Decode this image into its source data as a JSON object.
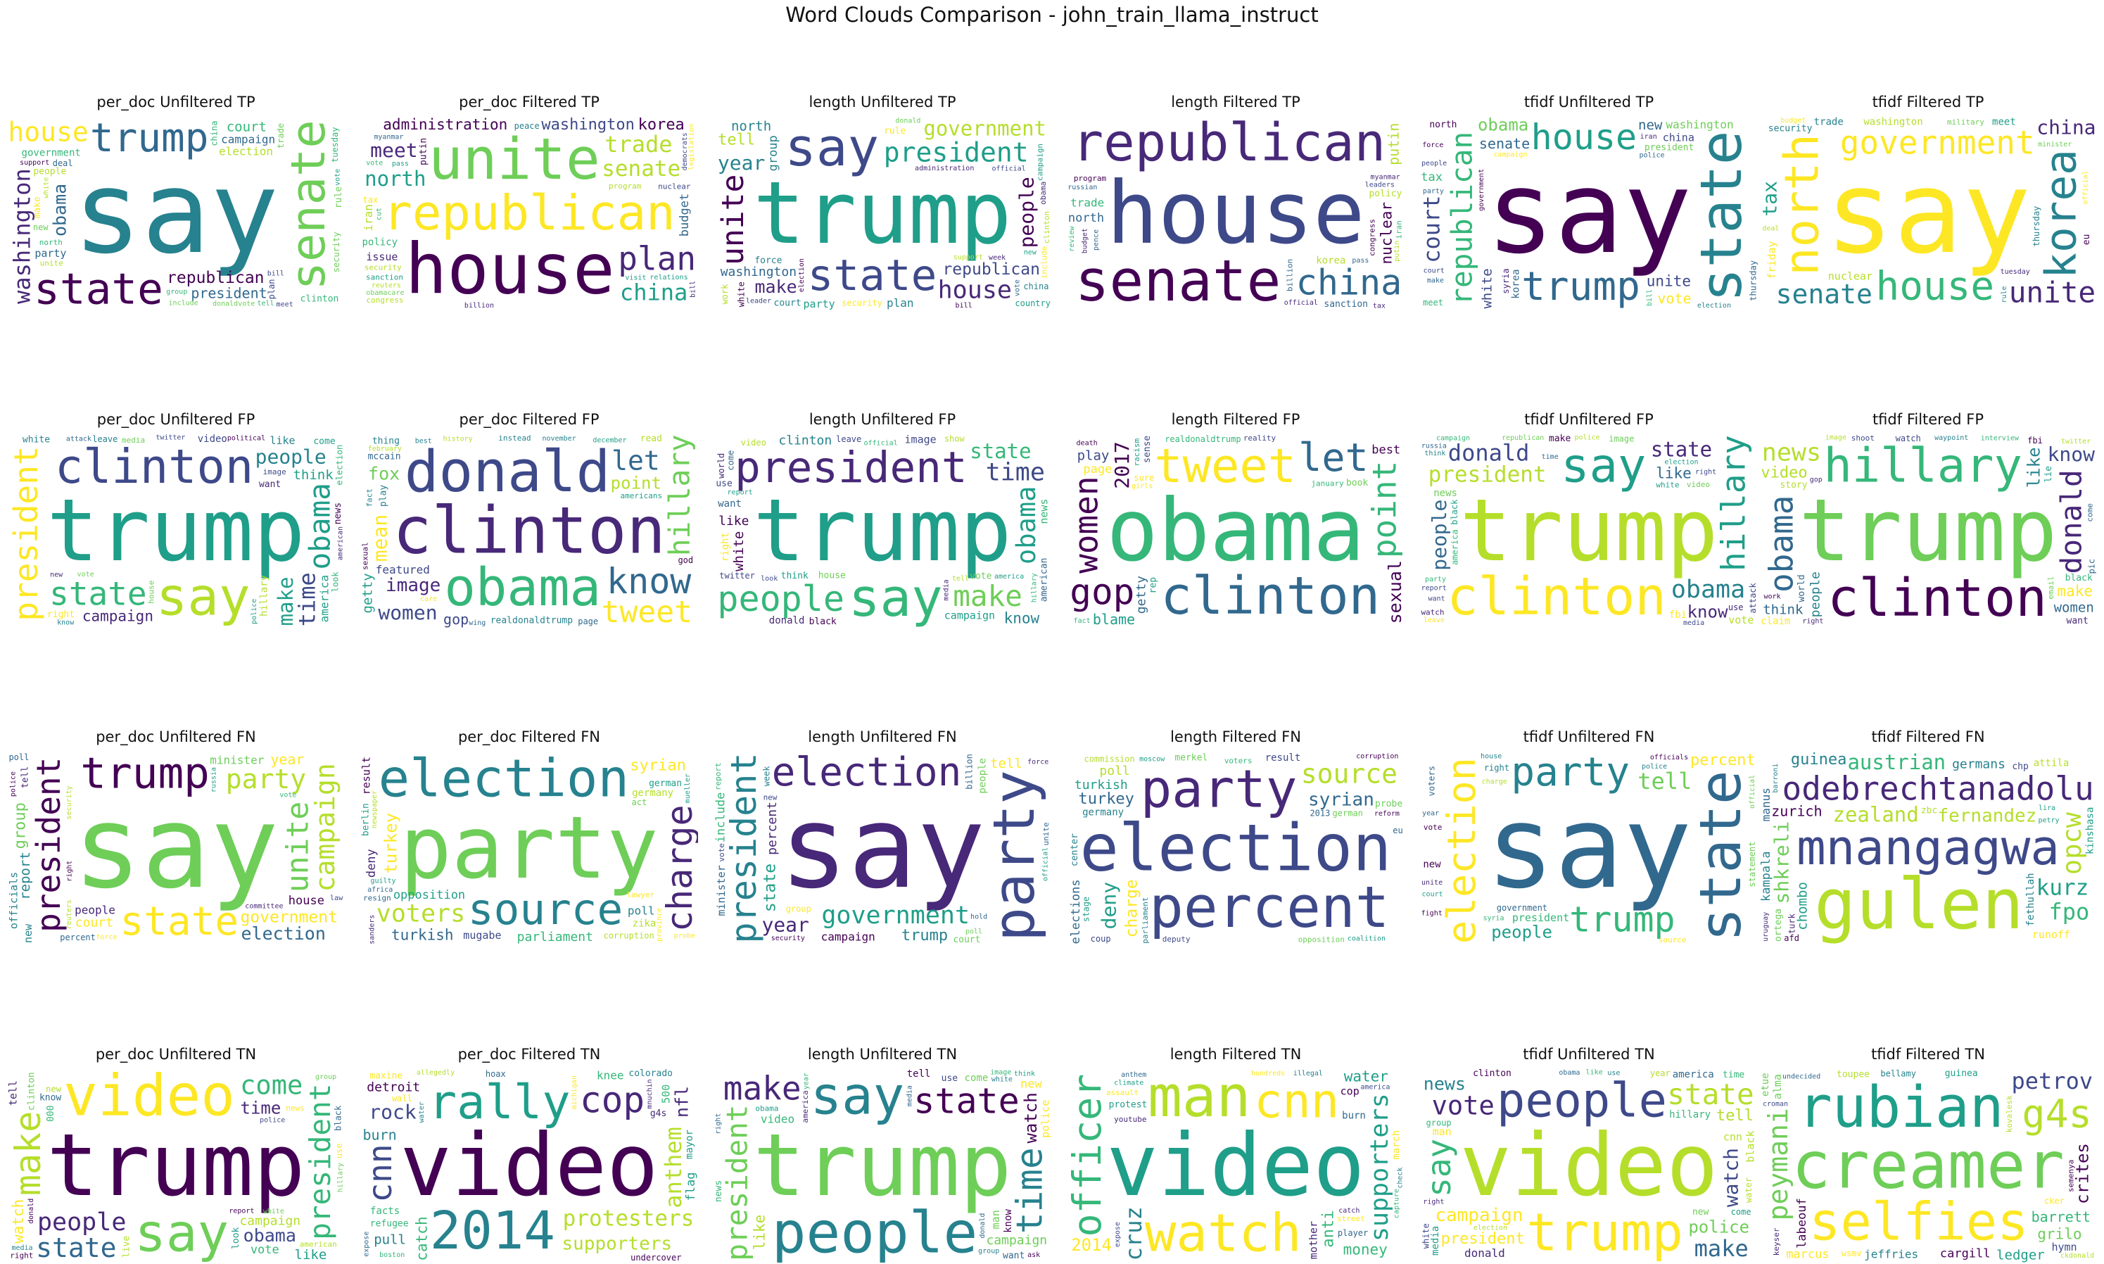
{
  "title": "Word Clouds Comparison - john_train_llama_instruct",
  "palette": [
    "#440154",
    "#482878",
    "#3e4989",
    "#31688e",
    "#26828e",
    "#1f9e89",
    "#35b779",
    "#6ece58",
    "#b5de2b",
    "#fde725"
  ],
  "chart_data": [
    {
      "type": "wordcloud",
      "title": "per_doc Unfiltered TP",
      "words": [
        "say",
        "trump",
        "state",
        "senate",
        "republican",
        "president",
        "house",
        "washington",
        "campaign",
        "government",
        "election",
        "obama",
        "clinton",
        "party",
        "court",
        "people",
        "donaldvote",
        "include",
        "north",
        "group",
        "unite",
        "support",
        "make",
        "tell",
        "force",
        "rule",
        "report",
        "new",
        "national",
        "administration",
        "meet",
        "plan",
        "military",
        "security",
        "official",
        "tuesday",
        "white",
        "russia",
        "china",
        "vote",
        "sanction",
        "trade",
        "law",
        "right",
        "leader",
        "bill",
        "republicans",
        "official",
        "deal",
        "tax",
        "nuclear",
        "policy",
        "week",
        "million"
      ]
    },
    {
      "type": "wordcloud",
      "title": "per_doc Filtered TP",
      "words": [
        "republican",
        "house",
        "unite",
        "washington",
        "senate",
        "plan",
        "north",
        "china",
        "meet",
        "trade",
        "administration",
        "congress",
        "korea",
        "nuclear",
        "policy",
        "budget",
        "iran",
        "issue",
        "program",
        "sanction",
        "security",
        "pass",
        "legislation",
        "billion",
        "putin",
        "obamacare",
        "visit",
        "peace",
        "leaders",
        "tax",
        "democrats",
        "relations",
        "reuters",
        "myanmar",
        "veteran",
        "healthcare",
        "official",
        "lawmaker",
        "cut",
        "vote",
        "office",
        "bill",
        "minister",
        "representative",
        "treasury"
      ]
    },
    {
      "type": "wordcloud",
      "title": "length Unfiltered TP",
      "words": [
        "trump",
        "say",
        "state",
        "president",
        "republican",
        "house",
        "government",
        "unite",
        "people",
        "washington",
        "year",
        "make",
        "tell",
        "include",
        "north",
        "group",
        "plan",
        "party",
        "obama",
        "clinton",
        "campaign",
        "force",
        "rule",
        "administration",
        "election",
        "court",
        "white",
        "china",
        "country",
        "work",
        "issue",
        "support",
        "percent",
        "security",
        "new",
        "donald",
        "republicans",
        "percent",
        "million",
        "official",
        "leader",
        "bill",
        "vote",
        "policy",
        "week"
      ]
    },
    {
      "type": "wordcloud",
      "title": "length Filtered TP",
      "words": [
        "house",
        "republican",
        "senate",
        "china",
        "north",
        "administration",
        "policy",
        "korea",
        "trade",
        "program",
        "nuclear",
        "congress",
        "sanction",
        "putin",
        "billion",
        "budget",
        "leaders",
        "iran",
        "obamacare",
        "healthcare",
        "myanmar",
        "review",
        "chinese",
        "leadership",
        "official",
        "bangladesh",
        "pence",
        "putin",
        "security",
        "lawmaker",
        "obamacare",
        "russian",
        "tax",
        "reform",
        "minister",
        "representative",
        "pass",
        "vote"
      ]
    },
    {
      "type": "wordcloud",
      "title": "tfidf Unfiltered TP",
      "words": [
        "say",
        "trump",
        "state",
        "house",
        "republican",
        "senate",
        "president",
        "court",
        "washington",
        "obama",
        "unite",
        "white",
        "tax",
        "vote",
        "new",
        "north",
        "government",
        "party",
        "china",
        "korea",
        "clinton",
        "make",
        "campaign",
        "election",
        "security",
        "russian",
        "military",
        "include",
        "thursday",
        "syria",
        "statement",
        "meet",
        "republicans",
        "iran",
        "people",
        "percent",
        "court",
        "official",
        "police",
        "force",
        "leader",
        "bill"
      ]
    },
    {
      "type": "wordcloud",
      "title": "tfidf Filtered TP",
      "words": [
        "say",
        "house",
        "government",
        "north",
        "unite",
        "korea",
        "senate",
        "washington",
        "china",
        "trade",
        "tax",
        "military",
        "security",
        "nuclear",
        "minister",
        "tuesday",
        "thursday",
        "friday",
        "deal",
        "budget",
        "meet",
        "eu",
        "official",
        "statement",
        "sanction",
        "islamic",
        "britain",
        "european",
        "committee",
        "reuters",
        "monday",
        "foreign",
        "rule",
        "leaders",
        "democrats",
        "president",
        "congress",
        "parliament",
        "prime"
      ]
    },
    {
      "type": "wordcloud",
      "title": "per_doc Unfiltered FP",
      "words": [
        "trump",
        "say",
        "president",
        "clinton",
        "obama",
        "state",
        "make",
        "time",
        "people",
        "hillary",
        "campaign",
        "think",
        "want",
        "like",
        "video",
        "white",
        "america",
        "house",
        "media",
        "twitter",
        "image",
        "right",
        "news",
        "come",
        "vote",
        "police",
        "election",
        "leave",
        "republican",
        "attack",
        "political",
        "party",
        "report",
        "know",
        "look",
        "world",
        "american",
        "tell",
        "donald",
        "new"
      ]
    },
    {
      "type": "wordcloud",
      "title": "per_doc Filtered FP",
      "words": [
        "clinton",
        "obama",
        "donald",
        "know",
        "hillary",
        "image",
        "let",
        "tweet",
        "women",
        "point",
        "mean",
        "fox",
        "realdonaldtrump",
        "gop",
        "getty",
        "play",
        "featured",
        "americans",
        "fact",
        "instead",
        "sexual",
        "mccain",
        "read",
        "thing",
        "november",
        "december",
        "history",
        "care",
        "wing",
        "page",
        "god",
        "best",
        "destroy",
        "racism",
        "reality",
        "february",
        "picture",
        "different"
      ]
    },
    {
      "type": "wordcloud",
      "title": "length Unfiltered FP",
      "words": [
        "trump",
        "say",
        "president",
        "people",
        "make",
        "time",
        "state",
        "clinton",
        "obama",
        "like",
        "know",
        "donald",
        "think",
        "campaign",
        "white",
        "house",
        "twitter",
        "image",
        "news",
        "want",
        "right",
        "american",
        "vote",
        "use",
        "media",
        "black",
        "hillary",
        "show",
        "video",
        "world",
        "leave",
        "america",
        "official",
        "tell",
        "report",
        "come",
        "look"
      ]
    },
    {
      "type": "wordcloud",
      "title": "length Filtered FP",
      "words": [
        "obama",
        "clinton",
        "women",
        "tweet",
        "let",
        "point",
        "gop",
        "getty",
        "2017",
        "january",
        "realdonaldtrump",
        "sexual",
        "page",
        "blame",
        "play",
        "best",
        "sure",
        "death",
        "racism",
        "reality",
        "finally",
        "simply",
        "november",
        "rep",
        "book",
        "sense",
        "girls",
        "article",
        "picture",
        "screen",
        "actually",
        "fact"
      ]
    },
    {
      "type": "wordcloud",
      "title": "tfidf Unfiltered FP",
      "words": [
        "trump",
        "clinton",
        "hillary",
        "say",
        "president",
        "obama",
        "state",
        "donald",
        "like",
        "know",
        "people",
        "video",
        "make",
        "vote",
        "news",
        "time",
        "image",
        "white",
        "republican",
        "fbi",
        "watch",
        "police",
        "party",
        "election",
        "think",
        "russia",
        "america",
        "black",
        "report",
        "leave",
        "attack",
        "house",
        "campaign",
        "media",
        "use",
        "right",
        "want",
        "come",
        "twitter",
        "email"
      ]
    },
    {
      "type": "wordcloud",
      "title": "tfidf Filtered FP",
      "words": [
        "trump",
        "clinton",
        "obama",
        "hillary",
        "donald",
        "news",
        "video",
        "like",
        "know",
        "people",
        "make",
        "women",
        "black",
        "email",
        "think",
        "want",
        "watch",
        "come",
        "shoot",
        "claim",
        "interview",
        "lie",
        "story",
        "waypoint",
        "twitter",
        "world",
        "work",
        "right",
        "pic",
        "image",
        "media",
        "fbi",
        "gop",
        "police"
      ]
    },
    {
      "type": "wordcloud",
      "title": "per_doc Unfiltered FN",
      "words": [
        "say",
        "state",
        "trump",
        "party",
        "government",
        "president",
        "campaign",
        "unite",
        "people",
        "court",
        "minister",
        "election",
        "group",
        "year",
        "report",
        "house",
        "percent",
        "officials",
        "new",
        "vote",
        "include",
        "tell",
        "security",
        "reuters",
        "russia",
        "police",
        "right",
        "political",
        "republican",
        "national",
        "poll",
        "support",
        "committee",
        "leader",
        "country",
        "force",
        "law",
        "week"
      ]
    },
    {
      "type": "wordcloud",
      "title": "per_doc Filtered FN",
      "words": [
        "party",
        "election",
        "source",
        "charge",
        "opposition",
        "voters",
        "syrian",
        "turkey",
        "turkish",
        "parliament",
        "corruption",
        "germany",
        "german",
        "mugabe",
        "authorities",
        "deny",
        "poll",
        "result",
        "lawyer",
        "zika",
        "resign",
        "probe",
        "merkel",
        "berlin",
        "africa",
        "allegations",
        "prosecutors",
        "investigate",
        "indictment",
        "sanders",
        "investigations",
        "mueller",
        "guilty",
        "supply",
        "act",
        "newspaper",
        "coalition",
        "collusion",
        "province"
      ]
    },
    {
      "type": "wordcloud",
      "title": "length Unfiltered FN",
      "words": [
        "say",
        "election",
        "party",
        "president",
        "state",
        "government",
        "trump",
        "percent",
        "year",
        "people",
        "campaign",
        "tell",
        "include",
        "minister",
        "vote",
        "court",
        "group",
        "report",
        "security",
        "unite",
        "new",
        "official",
        "officials",
        "hold",
        "police",
        "force",
        "national",
        "country",
        "billion",
        "reuters",
        "military",
        "week",
        "poll",
        "leader"
      ]
    },
    {
      "type": "wordcloud",
      "title": "length Filtered FN",
      "words": [
        "election",
        "party",
        "percent",
        "source",
        "charge",
        "syrian",
        "turkey",
        "turkish",
        "deny",
        "poll",
        "german",
        "germany",
        "merkel",
        "voters",
        "result",
        "elections",
        "commission",
        "opposition",
        "parliament",
        "corruption",
        "deputy",
        "coalition",
        "probe",
        "moscow",
        "center",
        "investigate",
        "coup",
        "2013",
        "eu",
        "stage",
        "supporters",
        "reform"
      ]
    },
    {
      "type": "wordcloud",
      "title": "tfidf Unfiltered FN",
      "words": [
        "say",
        "party",
        "state",
        "trump",
        "election",
        "president",
        "percent",
        "people",
        "government",
        "tell",
        "police",
        "officials",
        "minister",
        "campaign",
        "vote",
        "year",
        "right",
        "source",
        "republican",
        "court",
        "new",
        "house",
        "charge",
        "russia",
        "syria",
        "attack",
        "statement",
        "security",
        "fight",
        "report",
        "include",
        "group",
        "unite",
        "official",
        "voters"
      ]
    },
    {
      "type": "wordcloud",
      "title": "tfidf Filtered FN",
      "words": [
        "mnangagwa",
        "gulen",
        "odebrechtanadolu",
        "zealand",
        "kurz",
        "fernandez",
        "austrian",
        "germans",
        "opcw",
        "fpo",
        "shkreli",
        "fethullah",
        "guinea",
        "zurich",
        "chombo",
        "kampala",
        "manus",
        "runoff",
        "uruguay",
        "attila",
        "kinshasa",
        "zbc",
        "chp",
        "maldonado",
        "petry",
        "ortega",
        "turk",
        "barroni",
        "afd",
        "lira"
      ]
    },
    {
      "type": "wordcloud",
      "title": "per_doc Unfiltered TN",
      "words": [
        "trump",
        "say",
        "video",
        "make",
        "president",
        "people",
        "state",
        "campaign",
        "come",
        "time",
        "watch",
        "obama",
        "clinton",
        "tell",
        "like",
        "vote",
        "white",
        "right",
        "news",
        "america",
        "american",
        "000",
        "live",
        "know",
        "look",
        "group",
        "report",
        "media",
        "hillary",
        "new",
        "police",
        "officer",
        "black",
        "use",
        "police",
        "donald"
      ]
    },
    {
      "type": "wordcloud",
      "title": "per_doc Filtered TN",
      "words": [
        "video",
        "2014",
        "cnn",
        "rally",
        "protesters",
        "supporters",
        "cop",
        "anthem",
        "rock",
        "detroit",
        "catch",
        "nfl",
        "refugee",
        "burn",
        "pull",
        "flag",
        "knee",
        "500",
        "michigan",
        "mayor",
        "facts",
        "g4s",
        "colorado",
        "maxine",
        "mnuchin",
        "expose",
        "undercover",
        "water",
        "hoax",
        "wall",
        "jackson",
        "allegedly",
        "boston"
      ]
    },
    {
      "type": "wordcloud",
      "title": "length Unfiltered TN",
      "words": [
        "trump",
        "say",
        "people",
        "state",
        "president",
        "make",
        "time",
        "campaign",
        "video",
        "watch",
        "like",
        "know",
        "donald",
        "america",
        "come",
        "new",
        "media",
        "man",
        "police",
        "tell",
        "obama",
        "news",
        "think",
        "want",
        "use",
        "right",
        "image",
        "twitter",
        "group",
        "year",
        "ask",
        "black",
        "white"
      ]
    },
    {
      "type": "wordcloud",
      "title": "length Filtered TN",
      "words": [
        "video",
        "watch",
        "man",
        "cnn",
        "officer",
        "supporters",
        "anti",
        "cruz",
        "water",
        "2014",
        "money",
        "march",
        "protest",
        "youtube",
        "street",
        "climate",
        "player",
        "cop",
        "mother",
        "burn",
        "assault",
        "illegal",
        "america",
        "hundreds",
        "court",
        "check",
        "capture",
        "anthem",
        "expose",
        "catch"
      ]
    },
    {
      "type": "wordcloud",
      "title": "tfidf Unfiltered TN",
      "words": [
        "video",
        "trump",
        "say",
        "people",
        "state",
        "campaign",
        "president",
        "police",
        "vote",
        "make",
        "watch",
        "news",
        "tell",
        "black",
        "hillary",
        "clinton",
        "donald",
        "cnn",
        "man",
        "america",
        "media",
        "new",
        "time",
        "obama",
        "like",
        "use",
        "water",
        "group",
        "year",
        "election",
        "right",
        "white",
        "come"
      ]
    },
    {
      "type": "wordcloud",
      "title": "tfidf Filtered TN",
      "words": [
        "creamer",
        "selfies",
        "rubian",
        "peymani",
        "g4s",
        "barrett",
        "cargill",
        "petrov",
        "grilo",
        "crites",
        "jeffries",
        "kovalesk",
        "labeouf",
        "hymn",
        "ledger",
        "marcus",
        "bellamy",
        "alma",
        "semenya",
        "keyser",
        "etue",
        "toupee",
        "guinea",
        "ckdonald",
        "registrations",
        "croman",
        "mcdowell",
        "undecided",
        "cker",
        "wsmv"
      ]
    }
  ]
}
